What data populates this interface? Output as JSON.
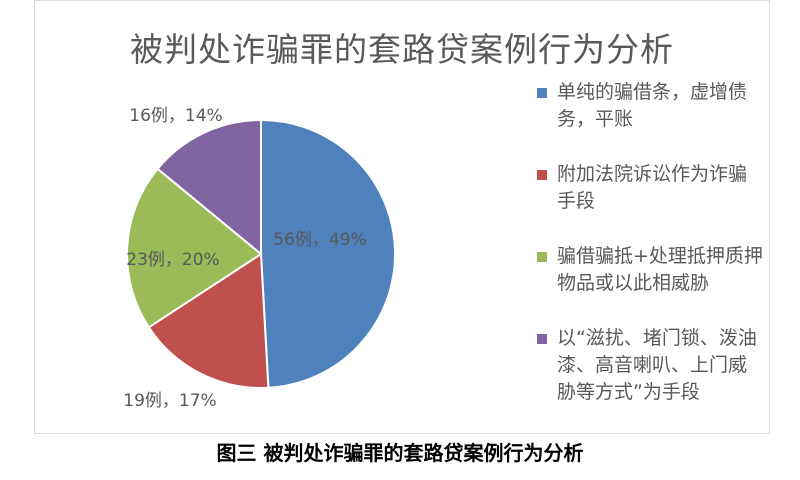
{
  "chart_data": {
    "type": "pie",
    "title": "被判处诈骗罪的套路贷案例行为分析",
    "slices": [
      {
        "name": "单纯的骗借条，虚增债务，平账",
        "value": 56,
        "label": "56例，49%",
        "color": "#4f81bd"
      },
      {
        "name": "附加法院诉讼作为诈骗手段",
        "value": 19,
        "label": "19例，17%",
        "color": "#c0504d"
      },
      {
        "name": "骗借骗抵+处理抵押质押物品或以此相威胁",
        "value": 23,
        "label": "23例，20%",
        "color": "#9bbb59"
      },
      {
        "name": "以“滋扰、堵门锁、泼油漆、高音喇叭、上门威胁等方式”为手段",
        "value": 16,
        "label": "16例，14%",
        "color": "#8064a2"
      }
    ],
    "legend_position": "right"
  },
  "caption": "图三  被判处诈骗罪的套路贷案例行为分析"
}
